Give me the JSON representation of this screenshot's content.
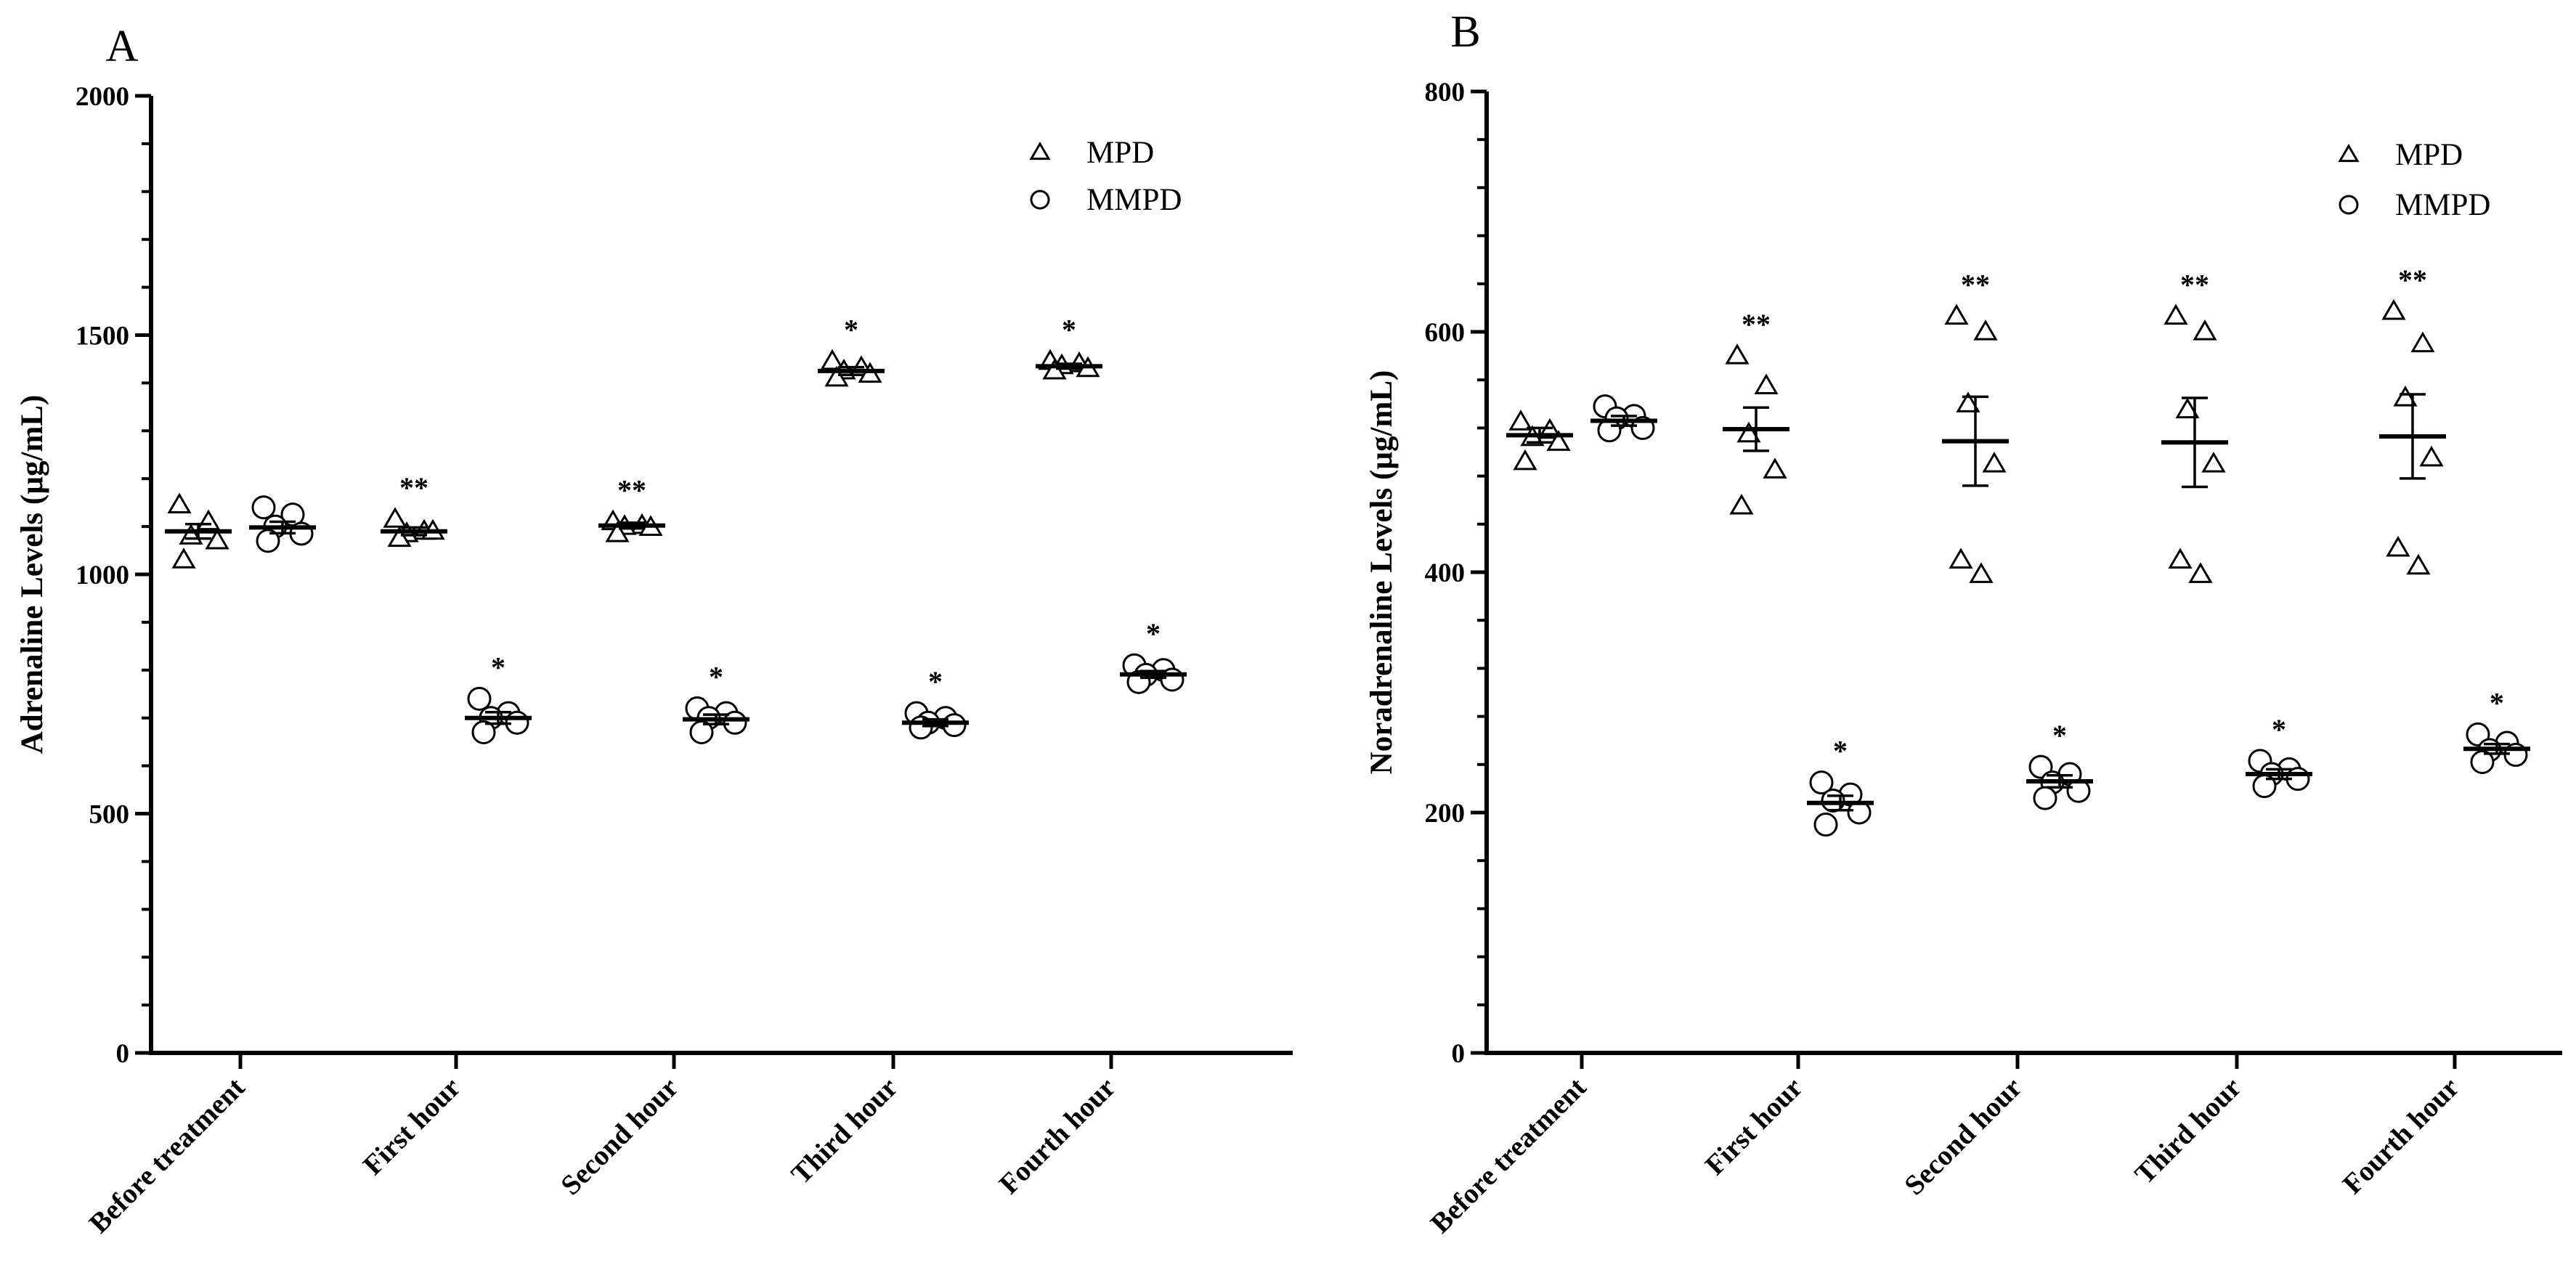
{
  "chart_data": [
    {
      "panel": "A",
      "type": "scatter",
      "ylabel": "Adrenaline Levels (µg/mL)",
      "ylim": [
        0,
        2000
      ],
      "yticks": [
        "0",
        "500",
        "1000",
        "1500",
        "2000"
      ],
      "minor_ticks_per_major": 5,
      "categories": [
        "Before treatment",
        "First hour",
        "Second hour",
        "Third hour",
        "Fourth hour"
      ],
      "legend": [
        {
          "name": "MPD",
          "marker": "triangle"
        },
        {
          "name": "MMPD",
          "marker": "circle"
        }
      ],
      "legend_position": "top-right",
      "series": [
        {
          "name": "MPD",
          "marker": "triangle",
          "means": [
            1090,
            1090,
            1102,
            1425,
            1435
          ],
          "sem": [
            15,
            8,
            6,
            8,
            5
          ],
          "points": [
            [
              1145,
              1110,
              1080,
              1070,
              1030
            ],
            [
              1115,
              1090,
              1085,
              1090,
              1075
            ],
            [
              1110,
              1102,
              1100,
              1098,
              1085
            ],
            [
              1445,
              1432,
              1425,
              1418,
              1410
            ],
            [
              1445,
              1440,
              1436,
              1430,
              1425
            ]
          ],
          "significance": [
            "",
            "**",
            "**",
            "*",
            "*"
          ]
        },
        {
          "name": "MMPD",
          "marker": "circle",
          "means": [
            1098,
            700,
            697,
            690,
            791
          ],
          "sem": [
            12,
            12,
            10,
            7,
            7
          ],
          "points": [
            [
              1140,
              1125,
              1100,
              1085,
              1070
            ],
            [
              740,
              710,
              700,
              690,
              670
            ],
            [
              720,
              710,
              700,
              690,
              670
            ],
            [
              710,
              700,
              690,
              685,
              680
            ],
            [
              810,
              800,
              790,
              780,
              775
            ]
          ],
          "significance": [
            "",
            "*",
            "*",
            "*",
            "*"
          ]
        }
      ]
    },
    {
      "panel": "B",
      "type": "scatter",
      "ylabel": "Noradrenaline Levels (µg/mL)",
      "ylim": [
        0,
        800
      ],
      "yticks": [
        "0",
        "200",
        "400",
        "600",
        "800"
      ],
      "minor_ticks_per_major": 5,
      "categories": [
        "Before treatment",
        "First hour",
        "Second hour",
        "Third hour",
        "Fourth hour"
      ],
      "legend": [
        {
          "name": "MPD",
          "marker": "triangle"
        },
        {
          "name": "MMPD",
          "marker": "circle"
        }
      ],
      "legend_position": "top-right",
      "series": [
        {
          "name": "MPD",
          "marker": "triangle",
          "means": [
            514,
            519,
            509,
            508,
            513
          ],
          "sem": [
            6,
            18,
            37,
            37,
            35
          ],
          "points": [
            [
              525,
              518,
              512,
              508,
              492
            ],
            [
              580,
              555,
              515,
              485,
              455
            ],
            [
              613,
              600,
              540,
              490,
              410,
              398
            ],
            [
              613,
              600,
              535,
              490,
              410,
              398
            ],
            [
              617,
              590,
              545,
              495,
              420,
              405
            ]
          ],
          "significance": [
            "",
            "**",
            "**",
            "**",
            "**"
          ]
        },
        {
          "name": "MMPD",
          "marker": "circle",
          "means": [
            526,
            208,
            226,
            232,
            253
          ],
          "sem": [
            4,
            6,
            5,
            4,
            4
          ],
          "points": [
            [
              538,
              530,
              528,
              520,
              518
            ],
            [
              225,
              215,
              210,
              200,
              190
            ],
            [
              238,
              232,
              225,
              218,
              212
            ],
            [
              243,
              236,
              232,
              228,
              222
            ],
            [
              265,
              258,
              252,
              248,
              242
            ]
          ],
          "significance": [
            "",
            "*",
            "*",
            "*",
            "*"
          ]
        }
      ]
    }
  ]
}
